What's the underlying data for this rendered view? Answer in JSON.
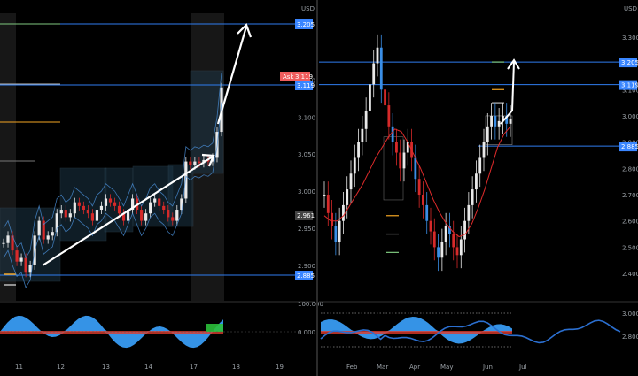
{
  "colors": {
    "background": "#000000",
    "bull": "#e9e9e9",
    "bear": "#d62a2a",
    "level_line": "#2f7df0",
    "ma_line": "#e02b2b",
    "osc_fill": "#3ba3ff",
    "osc_red": "#e03b2b",
    "osc_green": "#2bbf3a",
    "price_tag": "#3a86ff",
    "ask_tag": "#f05d5d",
    "arrow": "#ffffff"
  },
  "left_panel": {
    "currency": "USD",
    "ask_label": "Ask",
    "ask_price": "3.119",
    "x_ticks": [
      "11",
      "12",
      "13",
      "14",
      "17",
      "18",
      "19"
    ],
    "y_ticks": [
      "3.150",
      "3.100",
      "3.050",
      "3.000",
      "2.950",
      "2.900"
    ],
    "tags": [
      {
        "kind": "level",
        "text": "3.205"
      },
      {
        "kind": "level",
        "text": "3.119"
      },
      {
        "kind": "level",
        "text": "2.961"
      },
      {
        "kind": "level",
        "text": "2.885"
      }
    ],
    "osc_ticks": [
      "100.000",
      "0.000"
    ]
  },
  "right_panel": {
    "currency": "USD",
    "x_ticks": [
      "Feb",
      "Mar",
      "Apr",
      "May",
      "Jun",
      "Jul"
    ],
    "y_ticks": [
      "3.300",
      "3.200",
      "3.100",
      "3.000",
      "2.900",
      "2.800",
      "2.700",
      "2.600",
      "2.500",
      "2.400"
    ],
    "tags": [
      {
        "kind": "level",
        "text": "3.205"
      },
      {
        "kind": "level",
        "text": "3.119"
      },
      {
        "kind": "level",
        "text": "2.885"
      }
    ],
    "osc_ticks": [
      "3.000",
      "2.800"
    ]
  },
  "chart_data": [
    {
      "type": "candlestick",
      "title": "",
      "x_categories": [
        "11",
        "12",
        "13",
        "14",
        "17",
        "18",
        "19"
      ],
      "ylim": [
        2.87,
        3.24
      ],
      "levels": [
        3.205,
        3.119,
        2.885
      ],
      "annotations": [
        "arrow up from ~2.89 to ~3.00",
        "arrow up from ~3.06 to ~3.205"
      ],
      "close_path": [
        2.93,
        2.94,
        2.92,
        2.905,
        2.91,
        2.89,
        2.9,
        2.94,
        2.96,
        2.935,
        2.94,
        2.945,
        2.97,
        2.975,
        2.965,
        2.97,
        2.985,
        2.98,
        2.975,
        2.97,
        2.96,
        2.975,
        2.98,
        2.99,
        2.985,
        2.98,
        2.97,
        2.96,
        2.975,
        2.99,
        2.975,
        2.96,
        2.97,
        2.985,
        2.99,
        2.98,
        2.975,
        2.965,
        2.96,
        2.975,
        2.99,
        3.04,
        3.035,
        3.04,
        3.038,
        3.042,
        3.04,
        3.045,
        3.08,
        3.14
      ]
    },
    {
      "type": "candlestick",
      "title": "",
      "x_categories": [
        "Feb",
        "Mar",
        "Apr",
        "May",
        "Jun",
        "Jul"
      ],
      "ylim": [
        2.37,
        3.34
      ],
      "levels": [
        3.205,
        3.119,
        2.885
      ],
      "close_path": [
        2.7,
        2.63,
        2.58,
        2.52,
        2.6,
        2.66,
        2.72,
        2.78,
        2.84,
        2.9,
        2.95,
        3.02,
        3.12,
        3.2,
        3.26,
        3.1,
        3.04,
        2.96,
        2.9,
        2.86,
        2.8,
        2.86,
        2.9,
        2.84,
        2.76,
        2.7,
        2.66,
        2.6,
        2.56,
        2.5,
        2.46,
        2.52,
        2.58,
        2.55,
        2.5,
        2.47,
        2.53,
        2.6,
        2.66,
        2.72,
        2.78,
        2.84,
        2.9,
        2.96,
        3.0,
        2.96,
        2.98,
        3.0,
        2.97,
        2.99
      ],
      "ma_path": [
        2.62,
        2.6,
        2.6,
        2.62,
        2.66,
        2.7,
        2.74,
        2.79,
        2.84,
        2.88,
        2.92,
        2.95,
        2.94,
        2.9,
        2.85,
        2.8,
        2.74,
        2.68,
        2.63,
        2.59,
        2.56,
        2.54,
        2.55,
        2.59,
        2.65,
        2.72,
        2.8,
        2.88,
        2.93,
        2.96
      ]
    }
  ]
}
